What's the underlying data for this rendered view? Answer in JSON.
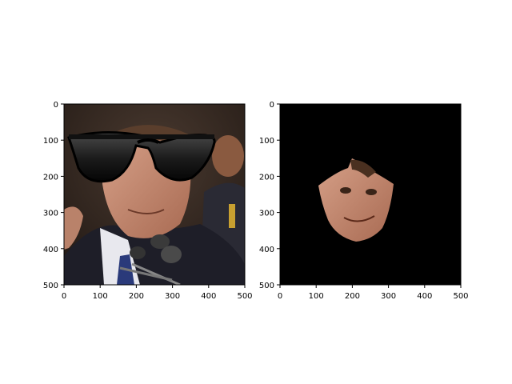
{
  "figure": {
    "panels": [
      {
        "id": "left",
        "content": "photo of a man in a suit speaking at microphones with cartoon sunglasses overlay",
        "x_ticks": [
          "0",
          "100",
          "200",
          "300",
          "400",
          "500"
        ],
        "y_ticks": [
          "0",
          "100",
          "200",
          "300",
          "400",
          "500"
        ],
        "xlim": [
          0,
          500
        ],
        "ylim": [
          500,
          0
        ]
      },
      {
        "id": "right",
        "content": "segmented face region on black background",
        "x_ticks": [
          "0",
          "100",
          "200",
          "300",
          "400",
          "500"
        ],
        "y_ticks": [
          "0",
          "100",
          "200",
          "300",
          "400",
          "500"
        ],
        "xlim": [
          0,
          500
        ],
        "ylim": [
          500,
          0
        ]
      }
    ]
  }
}
